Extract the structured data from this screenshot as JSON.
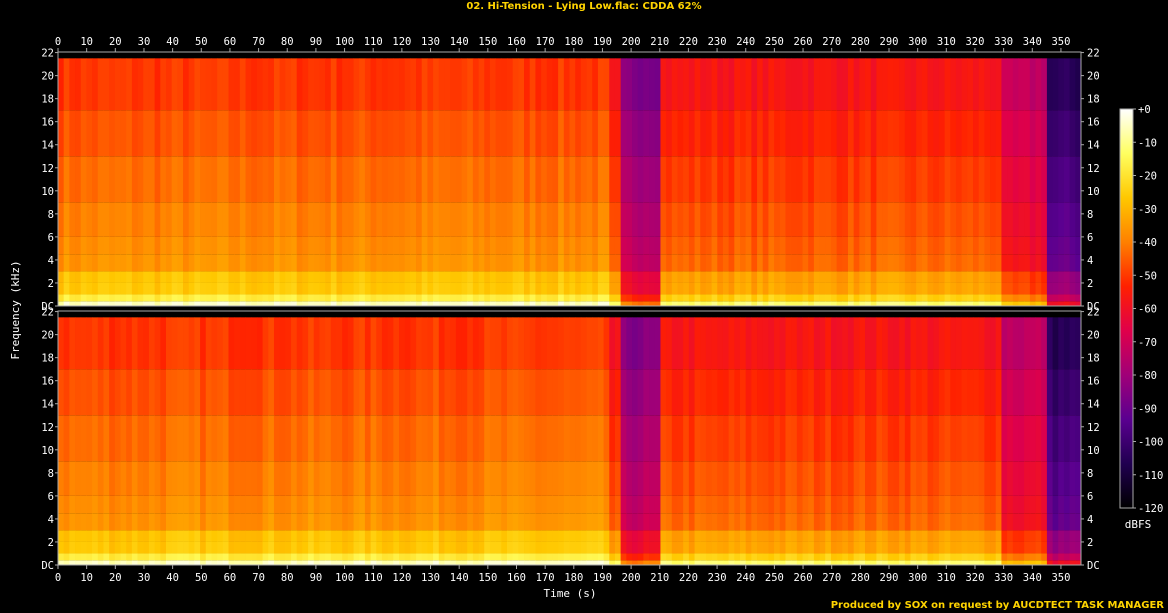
{
  "title": "02. Hi-Tension - Lying Low.flac: CDDA 62%",
  "footer": "Produced by SOX on request by AUCDTECT TASK MANAGER",
  "colors": {
    "text": "#ffffff",
    "title": "#ffd400",
    "frame": "#aaaaaa",
    "background": "#000000"
  },
  "chart_data": {
    "type": "heatmap",
    "xlabel": "Time (s)",
    "ylabel": "Frequency (kHz)",
    "xlim": [
      0,
      357
    ],
    "ylim": [
      0,
      22.05
    ],
    "x_ticks": [
      0,
      10,
      20,
      30,
      40,
      50,
      60,
      70,
      80,
      90,
      100,
      110,
      120,
      130,
      140,
      150,
      160,
      170,
      180,
      190,
      200,
      210,
      220,
      230,
      240,
      250,
      260,
      270,
      280,
      290,
      300,
      310,
      320,
      330,
      340,
      350
    ],
    "y_ticks": [
      {
        "value": 0,
        "label": "DC"
      },
      {
        "value": 2,
        "label": "2"
      },
      {
        "value": 4,
        "label": "4"
      },
      {
        "value": 6,
        "label": "6"
      },
      {
        "value": 8,
        "label": "8"
      },
      {
        "value": 10,
        "label": "10"
      },
      {
        "value": 12,
        "label": "12"
      },
      {
        "value": 14,
        "label": "14"
      },
      {
        "value": 16,
        "label": "16"
      },
      {
        "value": 18,
        "label": "18"
      },
      {
        "value": 20,
        "label": "20"
      },
      {
        "value": 22,
        "label": "22"
      }
    ],
    "channels": [
      {
        "name": "",
        "panel": "top"
      },
      {
        "name": "",
        "panel": "bottom"
      }
    ],
    "colorbar": {
      "unit": "dBFS",
      "range": [
        -120,
        0
      ],
      "ticks": [
        {
          "value": 0,
          "label": "+0"
        },
        {
          "value": -10,
          "label": "-10"
        },
        {
          "value": -20,
          "label": "-20"
        },
        {
          "value": -30,
          "label": "-30"
        },
        {
          "value": -40,
          "label": "-40"
        },
        {
          "value": -50,
          "label": "-50"
        },
        {
          "value": -60,
          "label": "-60"
        },
        {
          "value": -70,
          "label": "-70"
        },
        {
          "value": -80,
          "label": "-80"
        },
        {
          "value": -90,
          "label": "-90"
        },
        {
          "value": -100,
          "label": "-100"
        },
        {
          "value": -110,
          "label": "-110"
        },
        {
          "value": -120,
          "label": "-120"
        }
      ],
      "stops": [
        "#ffffff",
        "#ffff60",
        "#ffc800",
        "#ff8000",
        "#ff2000",
        "#e0004a",
        "#a00078",
        "#5a0090",
        "#200050",
        "#000000"
      ]
    },
    "intensity_profile": {
      "description_free_segments": [
        {
          "t0": 0,
          "t1": 193,
          "level_db": -45
        },
        {
          "t0": 193,
          "t1": 197,
          "level_db": -55
        },
        {
          "t0": 197,
          "t1": 210,
          "level_db": -80
        },
        {
          "t0": 210,
          "t1": 330,
          "level_db": -52
        },
        {
          "t0": 330,
          "t1": 345,
          "level_db": -68
        },
        {
          "t0": 345,
          "t1": 357,
          "level_db": -100
        }
      ],
      "cutoff_khz": 21.5
    }
  }
}
